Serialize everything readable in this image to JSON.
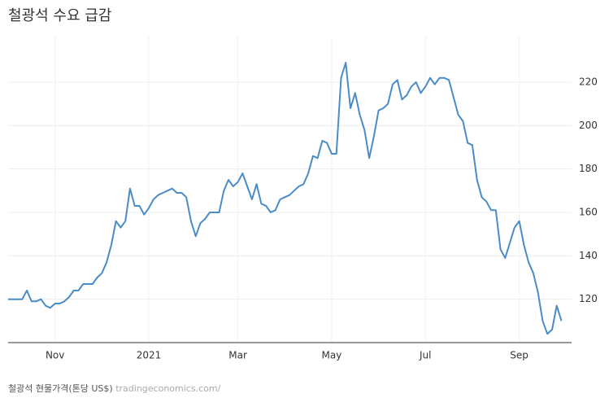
{
  "chart_data": {
    "type": "line",
    "title": "철광석 수요 급감",
    "source": "철광석 현물가격(톤당 US$)",
    "source_site": "tradingeconomics.com/",
    "categories": [
      null,
      null,
      null,
      null,
      null,
      null,
      null,
      null,
      null,
      null,
      "Nov",
      null,
      null,
      null,
      null,
      null,
      null,
      null,
      null,
      null,
      null,
      null,
      null,
      null,
      null,
      null,
      null,
      null,
      null,
      null,
      "2021",
      null,
      null,
      null,
      null,
      null,
      null,
      null,
      null,
      null,
      null,
      null,
      null,
      null,
      null,
      null,
      null,
      null,
      null,
      "Mar",
      null,
      null,
      null,
      null,
      null,
      null,
      null,
      null,
      null,
      null,
      null,
      null,
      null,
      null,
      null,
      null,
      null,
      null,
      null,
      "May",
      null,
      null,
      null,
      null,
      null,
      null,
      null,
      null,
      null,
      null,
      null,
      null,
      null,
      null,
      null,
      null,
      null,
      null,
      null,
      "Jul",
      null,
      null,
      null,
      null,
      null,
      null,
      null,
      null,
      null,
      null,
      null,
      null,
      null,
      null,
      null,
      null,
      null,
      null,
      null,
      "Sep",
      null,
      null,
      null,
      null,
      null,
      null,
      null,
      null,
      null
    ],
    "series": [
      {
        "name": "철광석",
        "color": "#4a8cc7",
        "values": [
          120,
          120,
          120,
          120,
          124,
          119,
          119,
          120,
          117,
          116,
          118,
          118,
          119,
          121,
          124,
          124,
          127,
          127,
          127,
          130,
          132,
          137,
          145,
          156,
          153,
          156,
          171,
          163,
          163,
          159,
          162,
          166,
          168,
          169,
          170,
          171,
          169,
          169,
          167,
          156,
          149,
          155,
          157,
          160,
          160,
          160,
          170,
          175,
          172,
          174,
          178,
          172,
          166,
          173,
          164,
          163,
          160,
          161,
          166,
          167,
          168,
          170,
          172,
          173,
          178,
          186,
          185,
          193,
          192,
          187,
          187,
          222,
          229,
          208,
          215,
          205,
          198,
          185,
          195,
          207,
          208,
          210,
          219,
          221,
          212,
          214,
          218,
          220,
          215,
          218,
          222,
          219,
          222,
          222,
          221,
          213,
          205,
          202,
          192,
          191,
          175,
          167,
          165,
          161,
          161,
          143,
          139,
          146,
          153,
          156,
          145,
          137,
          132,
          123,
          110,
          104,
          106,
          117,
          110
        ]
      }
    ],
    "ylim": [
      100,
      241
    ],
    "yticks": [
      120,
      140,
      160,
      180,
      200,
      220
    ],
    "grid": true
  }
}
